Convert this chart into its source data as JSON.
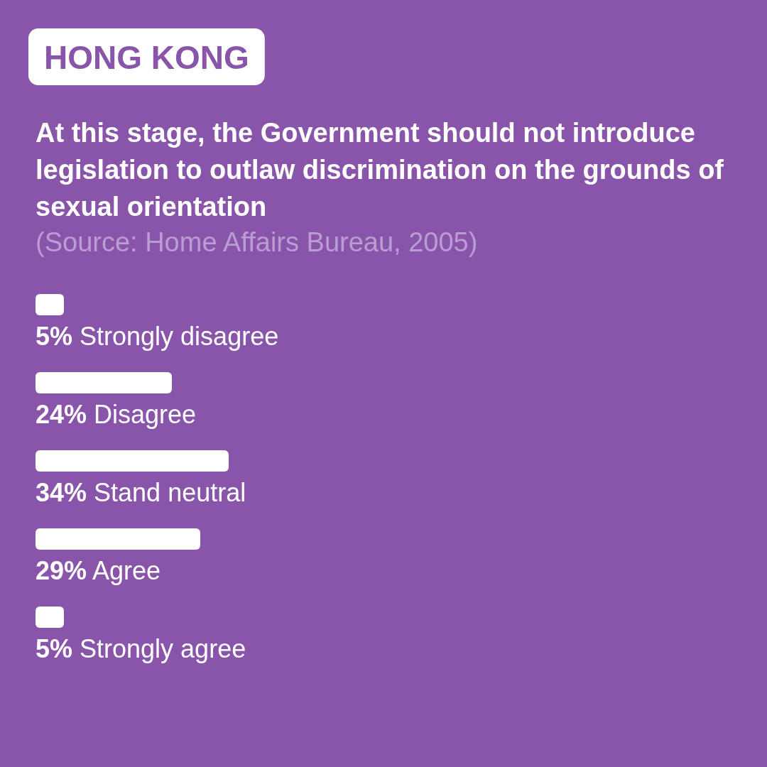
{
  "chart_data": {
    "type": "bar",
    "orientation": "horizontal",
    "subtitle": "HONG KONG",
    "title": "At this stage, the Government should not introduce legislation to outlaw discrimination on the grounds of sexual orientation",
    "annotations": [
      "(Source: Home Affairs Bureau, 2005)"
    ],
    "categories": [
      "Strongly disagree",
      "Disagree",
      "Stand neutral",
      "Agree",
      "Strongly agree"
    ],
    "values": [
      5,
      24,
      34,
      29,
      5
    ],
    "value_labels": [
      "5%",
      "24%",
      "34%",
      "29%",
      "5%"
    ],
    "color": "#ffffff"
  }
}
